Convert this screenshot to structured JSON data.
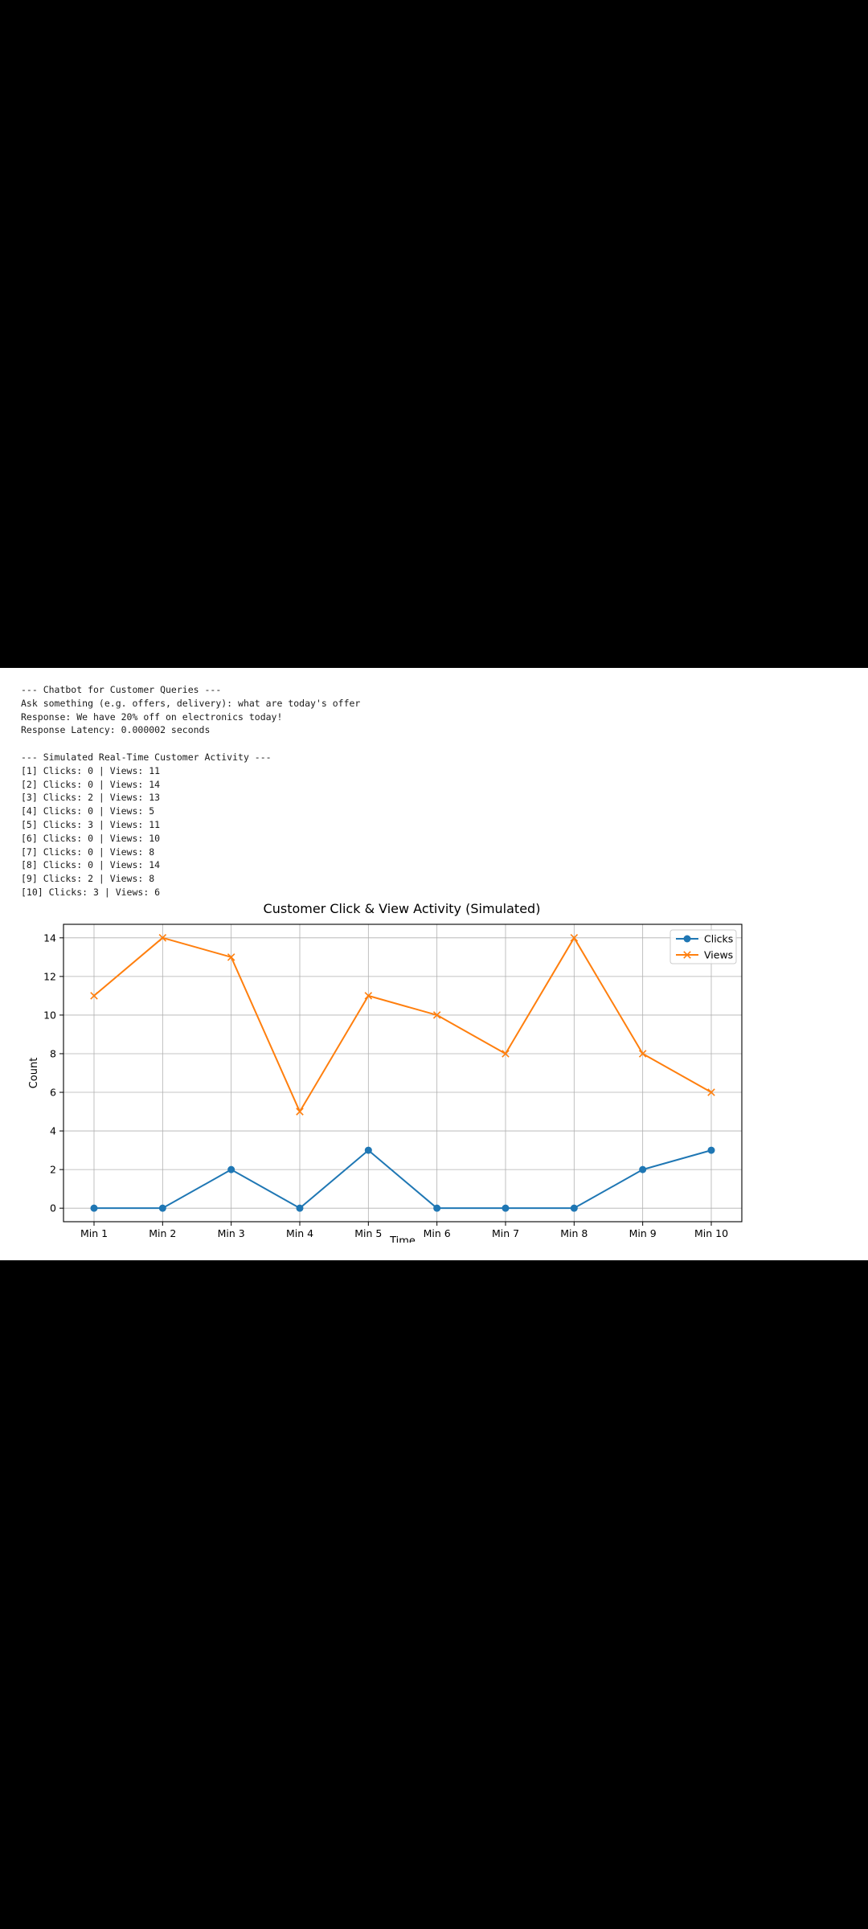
{
  "console": {
    "lines": [
      "--- Chatbot for Customer Queries ---",
      "Ask something (e.g. offers, delivery): what are today's offer",
      "Response: We have 20% off on electronics today!",
      "Response Latency: 0.000002 seconds",
      "",
      "--- Simulated Real-Time Customer Activity ---",
      "[1] Clicks: 0 | Views: 11",
      "[2] Clicks: 0 | Views: 14",
      "[3] Clicks: 2 | Views: 13",
      "[4] Clicks: 0 | Views: 5",
      "[5] Clicks: 3 | Views: 11",
      "[6] Clicks: 0 | Views: 10",
      "[7] Clicks: 0 | Views: 8",
      "[8] Clicks: 0 | Views: 14",
      "[9] Clicks: 2 | Views: 8",
      "[10] Clicks: 3 | Views: 6"
    ]
  },
  "chart_data": {
    "type": "line",
    "title": "Customer Click & View Activity (Simulated)",
    "xlabel": "Time",
    "ylabel": "Count",
    "categories": [
      "Min 1",
      "Min 2",
      "Min 3",
      "Min 4",
      "Min 5",
      "Min 6",
      "Min 7",
      "Min 8",
      "Min 9",
      "Min 10"
    ],
    "ylim": [
      -0.7,
      14.7
    ],
    "yticks": [
      0,
      2,
      4,
      6,
      8,
      10,
      12,
      14
    ],
    "grid": true,
    "legend_position": "top-right",
    "series": [
      {
        "name": "Clicks",
        "values": [
          0,
          0,
          2,
          0,
          3,
          0,
          0,
          0,
          2,
          3
        ],
        "color": "#1f77b4",
        "marker": "circle"
      },
      {
        "name": "Views",
        "values": [
          11,
          14,
          13,
          5,
          11,
          10,
          8,
          14,
          8,
          6
        ],
        "color": "#ff7f0e",
        "marker": "x"
      }
    ]
  }
}
